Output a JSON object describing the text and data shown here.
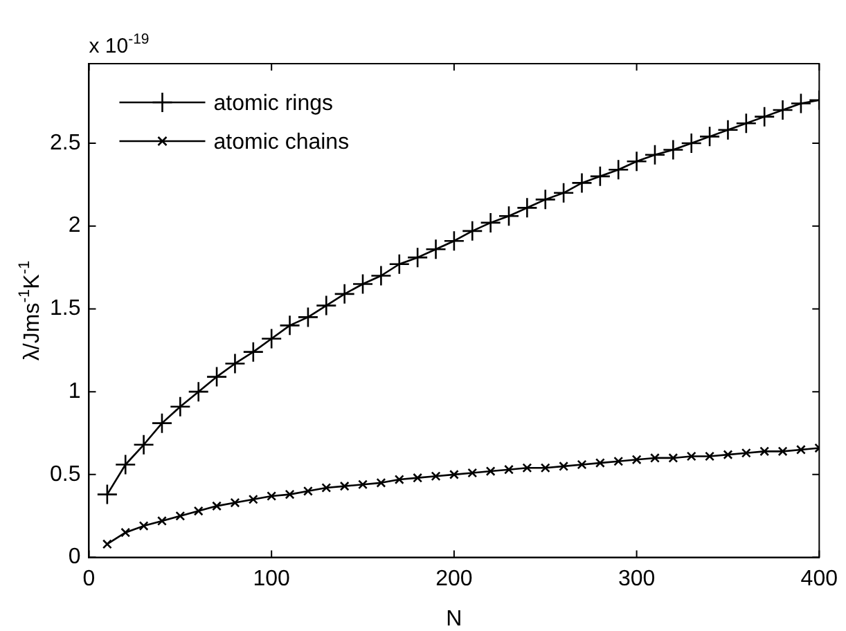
{
  "chart_data": {
    "type": "line",
    "xlabel": "N",
    "ylabel": "λ/Jms$^{-1}$K$^{-1}$",
    "annotations": [
      "x 10$^{-19}$"
    ],
    "x": [
      10,
      20,
      30,
      40,
      50,
      60,
      70,
      80,
      90,
      100,
      110,
      120,
      130,
      140,
      150,
      160,
      170,
      180,
      190,
      200,
      210,
      220,
      230,
      240,
      250,
      260,
      270,
      280,
      290,
      300,
      310,
      320,
      330,
      340,
      350,
      360,
      370,
      380,
      390,
      400
    ],
    "series": [
      {
        "name": "atomic rings",
        "color": "#000000",
        "marker": "cross",
        "values": [
          0.38,
          0.56,
          0.68,
          0.81,
          0.91,
          1.0,
          1.09,
          1.17,
          1.24,
          1.32,
          1.4,
          1.45,
          1.52,
          1.59,
          1.65,
          1.7,
          1.77,
          1.81,
          1.86,
          1.91,
          1.97,
          2.02,
          2.06,
          2.11,
          2.16,
          2.2,
          2.26,
          2.3,
          2.34,
          2.39,
          2.43,
          2.46,
          2.5,
          2.54,
          2.58,
          2.62,
          2.66,
          2.7,
          2.74,
          2.76
        ]
      },
      {
        "name": "atomic chains",
        "color": "#000000",
        "marker": "x",
        "values": [
          0.08,
          0.15,
          0.19,
          0.22,
          0.25,
          0.28,
          0.31,
          0.33,
          0.35,
          0.37,
          0.38,
          0.4,
          0.42,
          0.43,
          0.44,
          0.45,
          0.47,
          0.48,
          0.49,
          0.5,
          0.51,
          0.52,
          0.53,
          0.54,
          0.54,
          0.55,
          0.56,
          0.57,
          0.58,
          0.59,
          0.6,
          0.6,
          0.61,
          0.61,
          0.62,
          0.63,
          0.64,
          0.64,
          0.65,
          0.66
        ]
      }
    ],
    "xlim": [
      0,
      400
    ],
    "xticks": [
      0,
      100,
      200,
      300,
      400
    ],
    "ylim": [
      0,
      2.98
    ],
    "yticks": [
      0,
      0.5,
      1,
      1.5,
      2,
      2.5
    ],
    "grid": false,
    "legend": "top left",
    "line_style": "solid"
  }
}
